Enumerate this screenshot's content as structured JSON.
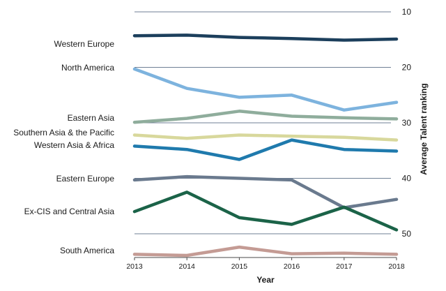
{
  "chart_data": {
    "type": "line",
    "title": "",
    "xlabel": "Year",
    "ylabel": "Average Talent ranking",
    "x": [
      2013,
      2014,
      2015,
      2016,
      2017,
      2018
    ],
    "x_ticks": [
      "2013",
      "2014",
      "2015",
      "2016",
      "2017",
      "2018"
    ],
    "ylim": [
      10,
      54
    ],
    "y_inverted": true,
    "y_axis_side": "right",
    "y_ticks": [
      "10",
      "20",
      "30",
      "40",
      "50"
    ],
    "grid": "horizontal",
    "legend": "series labels on left",
    "series": [
      {
        "name": "Western Europe",
        "color": "#1c3f5c",
        "values": [
          14.3,
          14.2,
          14.6,
          14.8,
          15.1,
          14.9
        ]
      },
      {
        "name": "North America",
        "color": "#7db3de",
        "values": [
          20.3,
          23.8,
          25.4,
          25.0,
          27.7,
          26.3
        ]
      },
      {
        "name": "Eastern Asia",
        "color": "#8fad9c",
        "values": [
          29.9,
          29.2,
          27.9,
          28.8,
          29.1,
          29.3
        ]
      },
      {
        "name": "Southern Asia & the Pacific",
        "color": "#d8d89c",
        "values": [
          32.2,
          32.8,
          32.2,
          32.4,
          32.6,
          33.1
        ]
      },
      {
        "name": "Western Asia & Africa",
        "color": "#1f7aad",
        "values": [
          34.2,
          34.8,
          36.6,
          33.1,
          34.8,
          35.1
        ]
      },
      {
        "name": "Eastern Europe",
        "color": "#6a7a8e",
        "values": [
          40.3,
          39.7,
          40.0,
          40.3,
          45.3,
          43.8
        ]
      },
      {
        "name": "Ex-CIS and Central Asia",
        "color": "#1b6348",
        "values": [
          46.0,
          42.5,
          47.1,
          48.3,
          45.2,
          49.3
        ]
      },
      {
        "name": "South America",
        "color": "#c49b94",
        "values": [
          53.7,
          53.9,
          52.4,
          53.6,
          53.5,
          53.7
        ]
      }
    ]
  }
}
